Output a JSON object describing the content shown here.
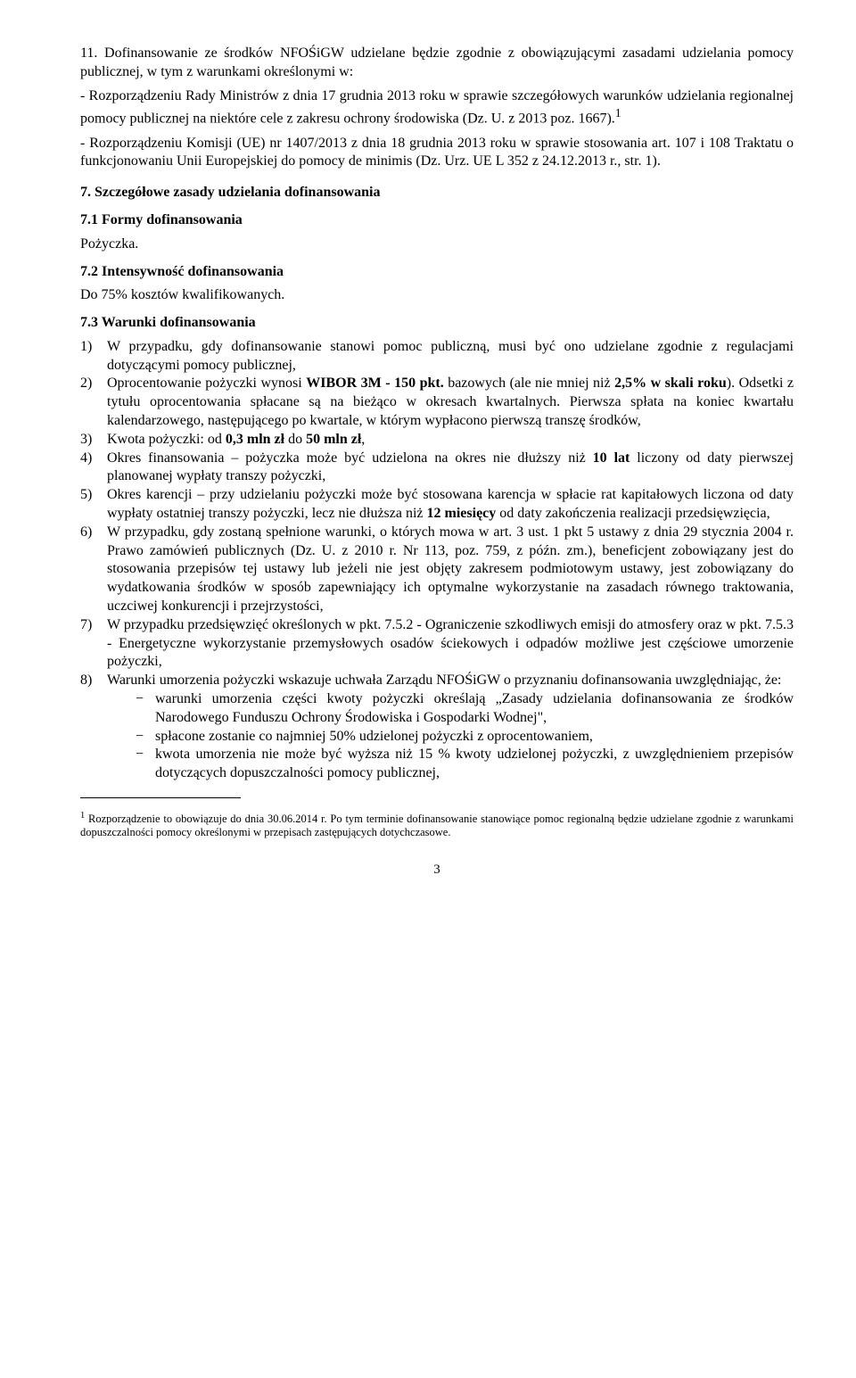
{
  "p1": "11. Dofinansowanie ze środków NFOŚiGW udzielane będzie zgodnie z obowiązującymi zasadami udzielania pomocy publicznej, w tym z warunkami określonymi w:",
  "p2": "- Rozporządzeniu Rady Ministrów z dnia 17 grudnia 2013 roku w sprawie szczegółowych warunków udzielania regionalnej pomocy publicznej na niektóre cele  z zakresu ochrony środowiska (Dz. U. z 2013 poz. 1667).",
  "p2sup": "1",
  "p3": "- Rozporządzeniu Komisji (UE) nr 1407/2013 z dnia 18 grudnia 2013 roku w sprawie stosowania art. 107 i 108 Traktatu o funkcjonowaniu Unii Europejskiej do pomocy de minimis (Dz. Urz. UE L 352 z 24.12.2013 r., str. 1).",
  "s7": "7.    Szczegółowe zasady udzielania dofinansowania",
  "s71": "7.1  Formy dofinansowania",
  "pozyczka": "Pożyczka.",
  "s72": "7.2  Intensywność dofinansowania",
  "do75": "Do 75% kosztów kwalifikowanych.",
  "s73": "7.3  Warunki dofinansowania",
  "li1n": "1)",
  "li1": "W przypadku, gdy dofinansowanie  stanowi pomoc publiczną, musi być ono udzielane zgodnie z regulacjami dotyczącymi pomocy publicznej,",
  "li2n": "2)",
  "li2a": "Oprocentowanie   pożyczki   wynosi   ",
  "li2b": "WIBOR   3M   -   150   pkt.",
  "li2c": "   bazowych (ale nie mniej niż ",
  "li2d": "2,5% w skali roku",
  "li2e": "). Odsetki z tytułu oprocentowania spłacane są na bieżąco w okresach kwartalnych. Pierwsza spłata na koniec kwartału kalendarzowego, następującego po kwartale, w którym wypłacono pierwszą transzę środków,",
  "li3n": "3)",
  "li3a": "Kwota pożyczki: od ",
  "li3b": "0,3 mln zł",
  "li3c": " do ",
  "li3d": "50 mln zł",
  "li3e": ",",
  "li4n": "4)",
  "li4a": "Okres   finansowania – pożyczka  może  być  udzielona  na  okres  nie  dłuższy  niż ",
  "li4b": "10 lat",
  "li4c": " liczony od daty pierwszej planowanej wypłaty transzy pożyczki,",
  "li5n": "5)",
  "li5a": "Okres karencji – przy udzielaniu pożyczki może być stosowana karencja w spłacie rat kapitałowych liczona od daty wypłaty ostatniej transzy pożyczki, lecz nie dłuższa niż ",
  "li5b": "12 miesięcy",
  "li5c": " od daty zakończenia realizacji przedsięwzięcia,",
  "li6n": "6)",
  "li6": "W przypadku, gdy zostaną spełnione warunki, o których mowa w art. 3 ust. 1 pkt 5 ustawy z dnia 29 stycznia 2004 r. Prawo zamówień publicznych (Dz. U. z 2010 r. Nr 113, poz. 759, z późn. zm.), beneficjent zobowiązany jest do stosowania przepisów tej ustawy lub jeżeli nie jest objęty zakresem podmiotowym ustawy, jest zobowiązany do wydatkowania środków w sposób zapewniający ich optymalne wykorzystanie na zasadach równego traktowania, uczciwej konkurencji i przejrzystości,",
  "li7n": "7)",
  "li7": "W przypadku przedsięwzięć określonych w pkt. 7.5.2 - Ograniczenie szkodliwych emisji do atmosfery oraz w pkt. 7.5.3 - Energetyczne wykorzystanie przemysłowych osadów ściekowych i odpadów możliwe jest częściowe umorzenie pożyczki,",
  "li8n": "8)",
  "li8": "Warunki   umorzenia   pożyczki   wskazuje   uchwała   Zarządu   NFOŚiGW o przyznaniu dofinansowania uwzględniając, że:",
  "d1": "warunki umorzenia części kwoty pożyczki określają „Zasady udzielania dofinansowania  ze  środków  Narodowego  Funduszu Ochrony Środowiska i Gospodarki Wodnej\",",
  "d2": "spłacone zostanie co najmniej 50% udzielonej pożyczki z oprocentowaniem,",
  "d3": "kwota umorzenia nie  może być wyższa niż  15 % kwoty udzielonej  pożyczki, z uwzględnieniem przepisów dotyczących dopuszczalności pomocy publicznej,",
  "fn_sup": "1",
  "fn": " Rozporządzenie to obowiązuje do dnia 30.06.2014 r. Po tym terminie dofinansowanie stanowiące pomoc regionalną będzie udzielane zgodnie z  warunkami dopuszczalności pomocy określonymi w przepisach zastępujących dotychczasowe.",
  "pagenum": "3"
}
